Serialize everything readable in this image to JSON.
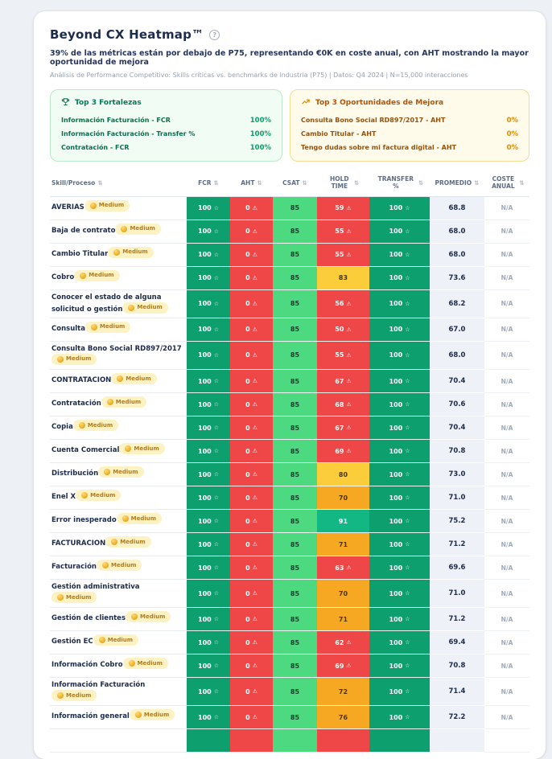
{
  "header": {
    "title": "Beyond CX Heatmap™",
    "subtitle": "39% de las métricas están por debajo de P75, representando €0K en coste anual, con AHT mostrando la mayor oportunidad de mejora",
    "meta": "Análisis de Performance Competitivo: Skills críticas vs. benchmarks de industria (P75) | Datos: Q4 2024 | N=15,000 interacciones",
    "help_icon": "?"
  },
  "panels": {
    "strengths": {
      "icon": "trophy-icon",
      "title": "Top 3 Fortalezas",
      "items": [
        {
          "label": "Información Facturación - FCR",
          "value": "100%"
        },
        {
          "label": "Información Facturación - Transfer %",
          "value": "100%"
        },
        {
          "label": "Contratación - FCR",
          "value": "100%"
        }
      ]
    },
    "opportunities": {
      "icon": "trend-up-icon",
      "title": "Top 3 Oportunidades de Mejora",
      "items": [
        {
          "label": "Consulta Bono Social RD897/2017 - AHT",
          "value": "0%"
        },
        {
          "label": "Cambio Titular - AHT",
          "value": "0%"
        },
        {
          "label": "Tengo dudas sobre mi factura digital - AHT",
          "value": "0%"
        }
      ]
    }
  },
  "table": {
    "columns": [
      "Skill/Proceso",
      "FCR",
      "AHT",
      "CSAT",
      "HOLD TIME",
      "TRANSFER %",
      "PROMEDIO",
      "COSTE ANUAL"
    ],
    "sort_icon": "⇅",
    "badge": {
      "label": "Medium",
      "icon": "medal-coin-icon"
    },
    "cell_icons": {
      "star": "☆",
      "warning": "⚠"
    },
    "rows": [
      {
        "skill": "AVERIAS",
        "fcr": "100",
        "aht": "0",
        "csat": "85",
        "hold": "59",
        "hold_color": "red",
        "transfer": "100",
        "promedio": "68.8",
        "coste": "N/A"
      },
      {
        "skill": "Baja de contrato",
        "fcr": "100",
        "aht": "0",
        "csat": "85",
        "hold": "55",
        "hold_color": "red",
        "transfer": "100",
        "promedio": "68.0",
        "coste": "N/A"
      },
      {
        "skill": "Cambio Titular",
        "fcr": "100",
        "aht": "0",
        "csat": "85",
        "hold": "55",
        "hold_color": "red",
        "transfer": "100",
        "promedio": "68.0",
        "coste": "N/A"
      },
      {
        "skill": "Cobro",
        "fcr": "100",
        "aht": "0",
        "csat": "85",
        "hold": "83",
        "hold_color": "yellow",
        "transfer": "100",
        "promedio": "73.6",
        "coste": "N/A"
      },
      {
        "skill": "Conocer el estado de alguna solicitud o gestión",
        "fcr": "100",
        "aht": "0",
        "csat": "85",
        "hold": "56",
        "hold_color": "red",
        "transfer": "100",
        "promedio": "68.2",
        "coste": "N/A"
      },
      {
        "skill": "Consulta",
        "fcr": "100",
        "aht": "0",
        "csat": "85",
        "hold": "50",
        "hold_color": "red",
        "transfer": "100",
        "promedio": "67.0",
        "coste": "N/A"
      },
      {
        "skill": "Consulta Bono Social RD897/2017",
        "fcr": "100",
        "aht": "0",
        "csat": "85",
        "hold": "55",
        "hold_color": "red",
        "transfer": "100",
        "promedio": "68.0",
        "coste": "N/A"
      },
      {
        "skill": "CONTRATACION",
        "fcr": "100",
        "aht": "0",
        "csat": "85",
        "hold": "67",
        "hold_color": "red",
        "transfer": "100",
        "promedio": "70.4",
        "coste": "N/A"
      },
      {
        "skill": "Contratación",
        "fcr": "100",
        "aht": "0",
        "csat": "85",
        "hold": "68",
        "hold_color": "red",
        "transfer": "100",
        "promedio": "70.6",
        "coste": "N/A"
      },
      {
        "skill": "Copia",
        "fcr": "100",
        "aht": "0",
        "csat": "85",
        "hold": "67",
        "hold_color": "red",
        "transfer": "100",
        "promedio": "70.4",
        "coste": "N/A"
      },
      {
        "skill": "Cuenta Comercial",
        "fcr": "100",
        "aht": "0",
        "csat": "85",
        "hold": "69",
        "hold_color": "red",
        "transfer": "100",
        "promedio": "70.8",
        "coste": "N/A"
      },
      {
        "skill": "Distribución",
        "fcr": "100",
        "aht": "0",
        "csat": "85",
        "hold": "80",
        "hold_color": "yellow",
        "transfer": "100",
        "promedio": "73.0",
        "coste": "N/A"
      },
      {
        "skill": "Enel X",
        "fcr": "100",
        "aht": "0",
        "csat": "85",
        "hold": "70",
        "hold_color": "amber",
        "transfer": "100",
        "promedio": "71.0",
        "coste": "N/A"
      },
      {
        "skill": "Error inesperado",
        "fcr": "100",
        "aht": "0",
        "csat": "85",
        "hold": "91",
        "hold_color": "green",
        "transfer": "100",
        "promedio": "75.2",
        "coste": "N/A"
      },
      {
        "skill": "FACTURACION",
        "fcr": "100",
        "aht": "0",
        "csat": "85",
        "hold": "71",
        "hold_color": "amber",
        "transfer": "100",
        "promedio": "71.2",
        "coste": "N/A"
      },
      {
        "skill": "Facturación",
        "fcr": "100",
        "aht": "0",
        "csat": "85",
        "hold": "63",
        "hold_color": "red",
        "transfer": "100",
        "promedio": "69.6",
        "coste": "N/A"
      },
      {
        "skill": "Gestión administrativa",
        "fcr": "100",
        "aht": "0",
        "csat": "85",
        "hold": "70",
        "hold_color": "amber",
        "transfer": "100",
        "promedio": "71.0",
        "coste": "N/A"
      },
      {
        "skill": "Gestión de clientes",
        "fcr": "100",
        "aht": "0",
        "csat": "85",
        "hold": "71",
        "hold_color": "amber",
        "transfer": "100",
        "promedio": "71.2",
        "coste": "N/A"
      },
      {
        "skill": "Gestión EC",
        "fcr": "100",
        "aht": "0",
        "csat": "85",
        "hold": "62",
        "hold_color": "red",
        "transfer": "100",
        "promedio": "69.4",
        "coste": "N/A"
      },
      {
        "skill": "Información Cobro",
        "fcr": "100",
        "aht": "0",
        "csat": "85",
        "hold": "69",
        "hold_color": "red",
        "transfer": "100",
        "promedio": "70.8",
        "coste": "N/A"
      },
      {
        "skill": "Información Facturación",
        "fcr": "100",
        "aht": "0",
        "csat": "85",
        "hold": "72",
        "hold_color": "amber",
        "transfer": "100",
        "promedio": "71.4",
        "coste": "N/A"
      },
      {
        "skill": "Información general",
        "fcr": "100",
        "aht": "0",
        "csat": "85",
        "hold": "76",
        "hold_color": "amber",
        "transfer": "100",
        "promedio": "72.2",
        "coste": "N/A"
      }
    ],
    "partial_row_colors": [
      "green",
      "red",
      "lightgreen",
      "red",
      "green",
      "promedio",
      "coste"
    ]
  },
  "colors": {
    "page_bg": "#edf0f4",
    "cell_green": "#0e9f6e",
    "cell_red": "#ef4747",
    "cell_lightgreen": "#4cd97f",
    "cell_midgreen": "#12b783",
    "cell_yellow": "#fbcd3a",
    "cell_amber": "#f6a822",
    "promedio_bg": "#eef2f8",
    "strengths_accent": "#0a9e6d",
    "opportunities_accent": "#e08a00"
  }
}
